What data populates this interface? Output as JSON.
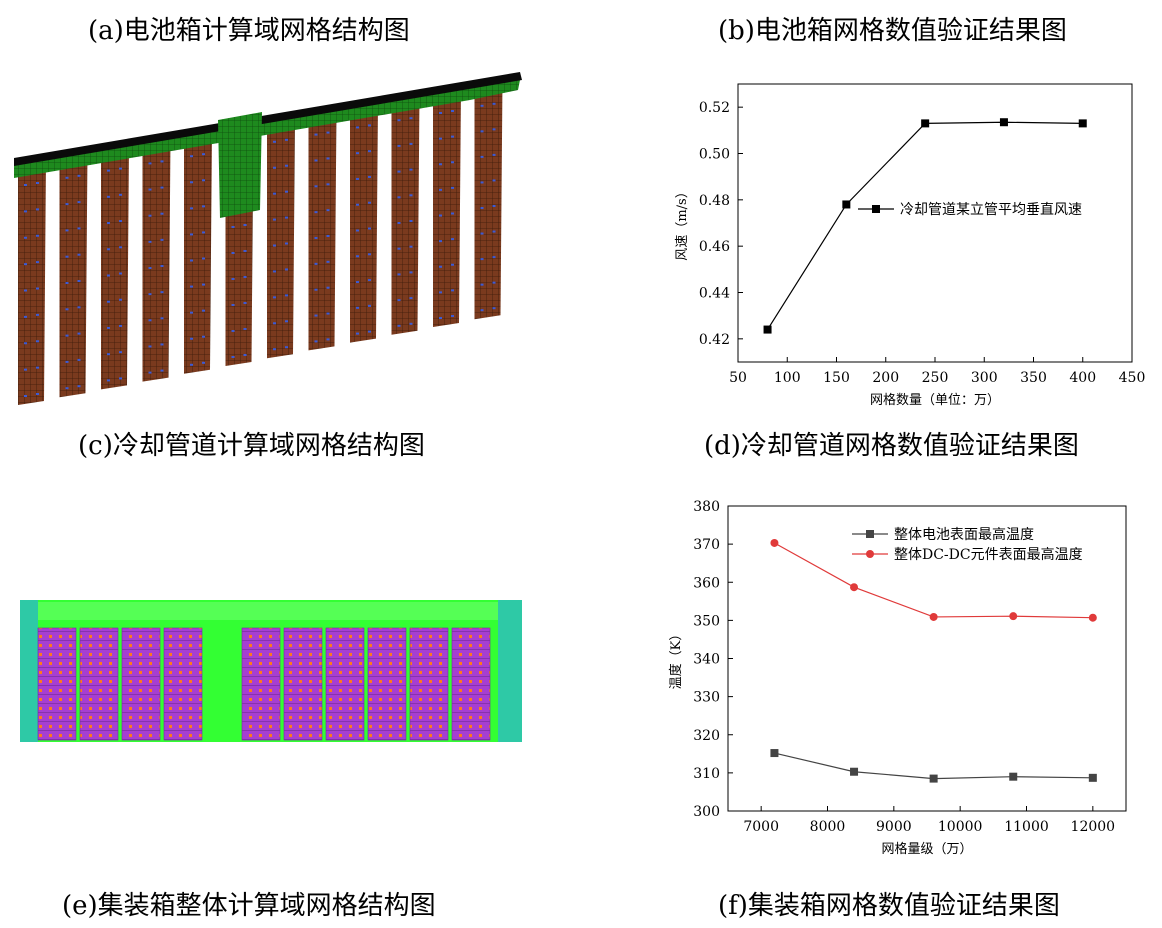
{
  "captions": {
    "a": "(a)电池箱计算域网格结构图",
    "b": "(b)电池箱网格数值验证结果图",
    "c": "(c)冷却管道计算域网格结构图",
    "d": "(d)冷却管道网格数值验证结果图",
    "e": "(e)集装箱整体计算域网格结构图",
    "f": "(f)集装箱网格数值验证结果图"
  },
  "colors": {
    "duct_top": "#0a0a0a",
    "duct_green": "#1e8a1e",
    "pipe_brown": "#7a3a1e",
    "pipe_node": "#3b5bd6",
    "container_green": "#33ff33",
    "container_teal": "#2ec9a6",
    "battery_purple": "#a63fd1",
    "battery_dot": "#ff7a1a",
    "series_black": "#000000",
    "series_gray": "#444444",
    "series_red": "#e03a3a"
  },
  "chart_data": [
    {
      "id": "b",
      "type": "line",
      "xlabel": "网格数量（单位：万）",
      "ylabel": "风速（m/s）",
      "xlim": [
        50,
        450
      ],
      "ylim": [
        0.41,
        0.53
      ],
      "xticks": [
        50,
        100,
        150,
        200,
        250,
        300,
        350,
        400,
        450
      ],
      "yticks": [
        0.42,
        0.44,
        0.46,
        0.48,
        0.5,
        0.52
      ],
      "ytick_labels": [
        "0.42",
        "0.44",
        "0.46",
        "0.48",
        "0.50",
        "0.52"
      ],
      "legend_position": "upper-right-center",
      "series": [
        {
          "name": "冷却管道某立管平均垂直风速",
          "marker": "square",
          "color": "#000000",
          "x": [
            80,
            160,
            240,
            320,
            400
          ],
          "y": [
            0.424,
            0.478,
            0.513,
            0.5135,
            0.513
          ]
        }
      ]
    },
    {
      "id": "f",
      "type": "line",
      "xlabel": "网格量级（万）",
      "ylabel": "温度（K）",
      "xlim": [
        6500,
        12500
      ],
      "ylim": [
        300,
        380
      ],
      "xticks": [
        7000,
        8000,
        9000,
        10000,
        11000,
        12000
      ],
      "yticks": [
        300,
        310,
        320,
        330,
        340,
        350,
        360,
        370,
        380
      ],
      "ytick_labels": [
        "300",
        "310",
        "320",
        "330",
        "340",
        "350",
        "360",
        "370",
        "380"
      ],
      "legend_position": "top-right",
      "series": [
        {
          "name": "整体电池表面最高温度",
          "marker": "square",
          "color": "#444444",
          "x": [
            7200,
            8400,
            9600,
            10800,
            12000
          ],
          "y": [
            315.2,
            310.3,
            308.5,
            309.0,
            308.7
          ]
        },
        {
          "name": "整体DC-DC元件表面最高温度",
          "marker": "circle",
          "color": "#e03a3a",
          "x": [
            7200,
            8400,
            9600,
            10800,
            12000
          ],
          "y": [
            370.3,
            358.7,
            350.9,
            351.1,
            350.7
          ]
        }
      ]
    }
  ]
}
